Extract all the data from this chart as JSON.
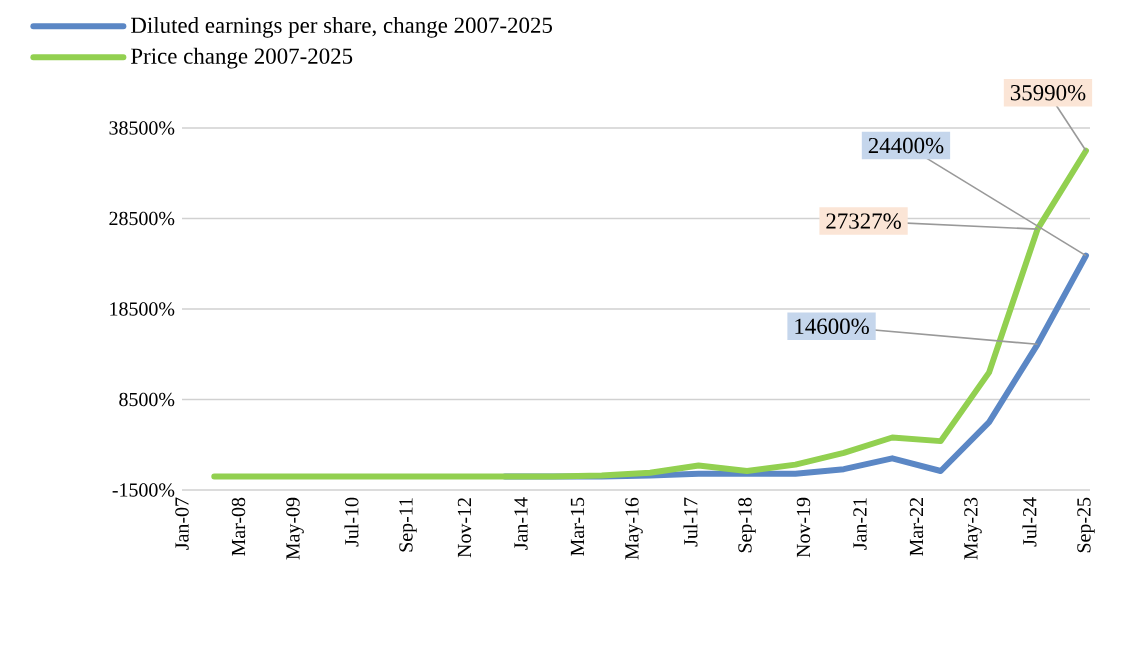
{
  "chart_data": {
    "type": "line",
    "x": [
      "2007-09",
      "2008-09",
      "2009-09",
      "2010-09",
      "2011-09",
      "2012-09",
      "2013-09",
      "2014-09",
      "2015-09",
      "2016-09",
      "2017-09",
      "2018-09",
      "2019-09",
      "2020-09",
      "2021-09",
      "2022-09",
      "2023-09",
      "2024-09",
      "2025-09"
    ],
    "series": [
      {
        "name": "Diluted earnings per share, change 2007-2025",
        "color": "#5b87c5",
        "values": [
          null,
          null,
          null,
          null,
          null,
          null,
          0,
          0,
          0,
          100,
          300,
          300,
          300,
          800,
          2000,
          600,
          6000,
          14600,
          24400
        ],
        "value_labels": [
          null,
          null,
          null,
          null,
          null,
          null,
          null,
          null,
          null,
          null,
          null,
          null,
          null,
          null,
          null,
          null,
          null,
          "14600%",
          "24400%"
        ]
      },
      {
        "name": "Price change 2007-2025",
        "color": "#92d050",
        "values": [
          0,
          0,
          0,
          0,
          0,
          0,
          0,
          0,
          100,
          400,
          1200,
          600,
          1300,
          2600,
          4300,
          3900,
          11500,
          27327,
          35990
        ],
        "value_labels": [
          null,
          null,
          null,
          null,
          null,
          null,
          null,
          null,
          null,
          null,
          null,
          null,
          null,
          null,
          null,
          null,
          null,
          "27327%",
          "35990%"
        ]
      }
    ],
    "xlim": [
      "2007-01",
      "2025-10"
    ],
    "xticks": [
      {
        "value": "2007-01",
        "label": "Jan-07"
      },
      {
        "value": "2008-03",
        "label": "Mar-08"
      },
      {
        "value": "2009-05",
        "label": "May-09"
      },
      {
        "value": "2010-07",
        "label": "Jul-10"
      },
      {
        "value": "2011-09",
        "label": "Sep-11"
      },
      {
        "value": "2012-11",
        "label": "Nov-12"
      },
      {
        "value": "2014-01",
        "label": "Jan-14"
      },
      {
        "value": "2015-03",
        "label": "Mar-15"
      },
      {
        "value": "2016-05",
        "label": "May-16"
      },
      {
        "value": "2017-07",
        "label": "Jul-17"
      },
      {
        "value": "2018-09",
        "label": "Sep-18"
      },
      {
        "value": "2019-11",
        "label": "Nov-19"
      },
      {
        "value": "2021-01",
        "label": "Jan-21"
      },
      {
        "value": "2022-03",
        "label": "Mar-22"
      },
      {
        "value": "2023-05",
        "label": "May-23"
      },
      {
        "value": "2024-07",
        "label": "Jul-24"
      },
      {
        "value": "2025-09",
        "label": "Sep-25"
      }
    ],
    "ylim": [
      -1500,
      38500
    ],
    "yticks": [
      {
        "value": -1500,
        "label": "-1500%"
      },
      {
        "value": 8500,
        "label": "8500%"
      },
      {
        "value": 18500,
        "label": "18500%"
      },
      {
        "value": 28500,
        "label": "28500%"
      },
      {
        "value": 38500,
        "label": "38500%"
      }
    ],
    "grid": "y",
    "legend": "top",
    "marker": "none",
    "line_style": "solid"
  }
}
